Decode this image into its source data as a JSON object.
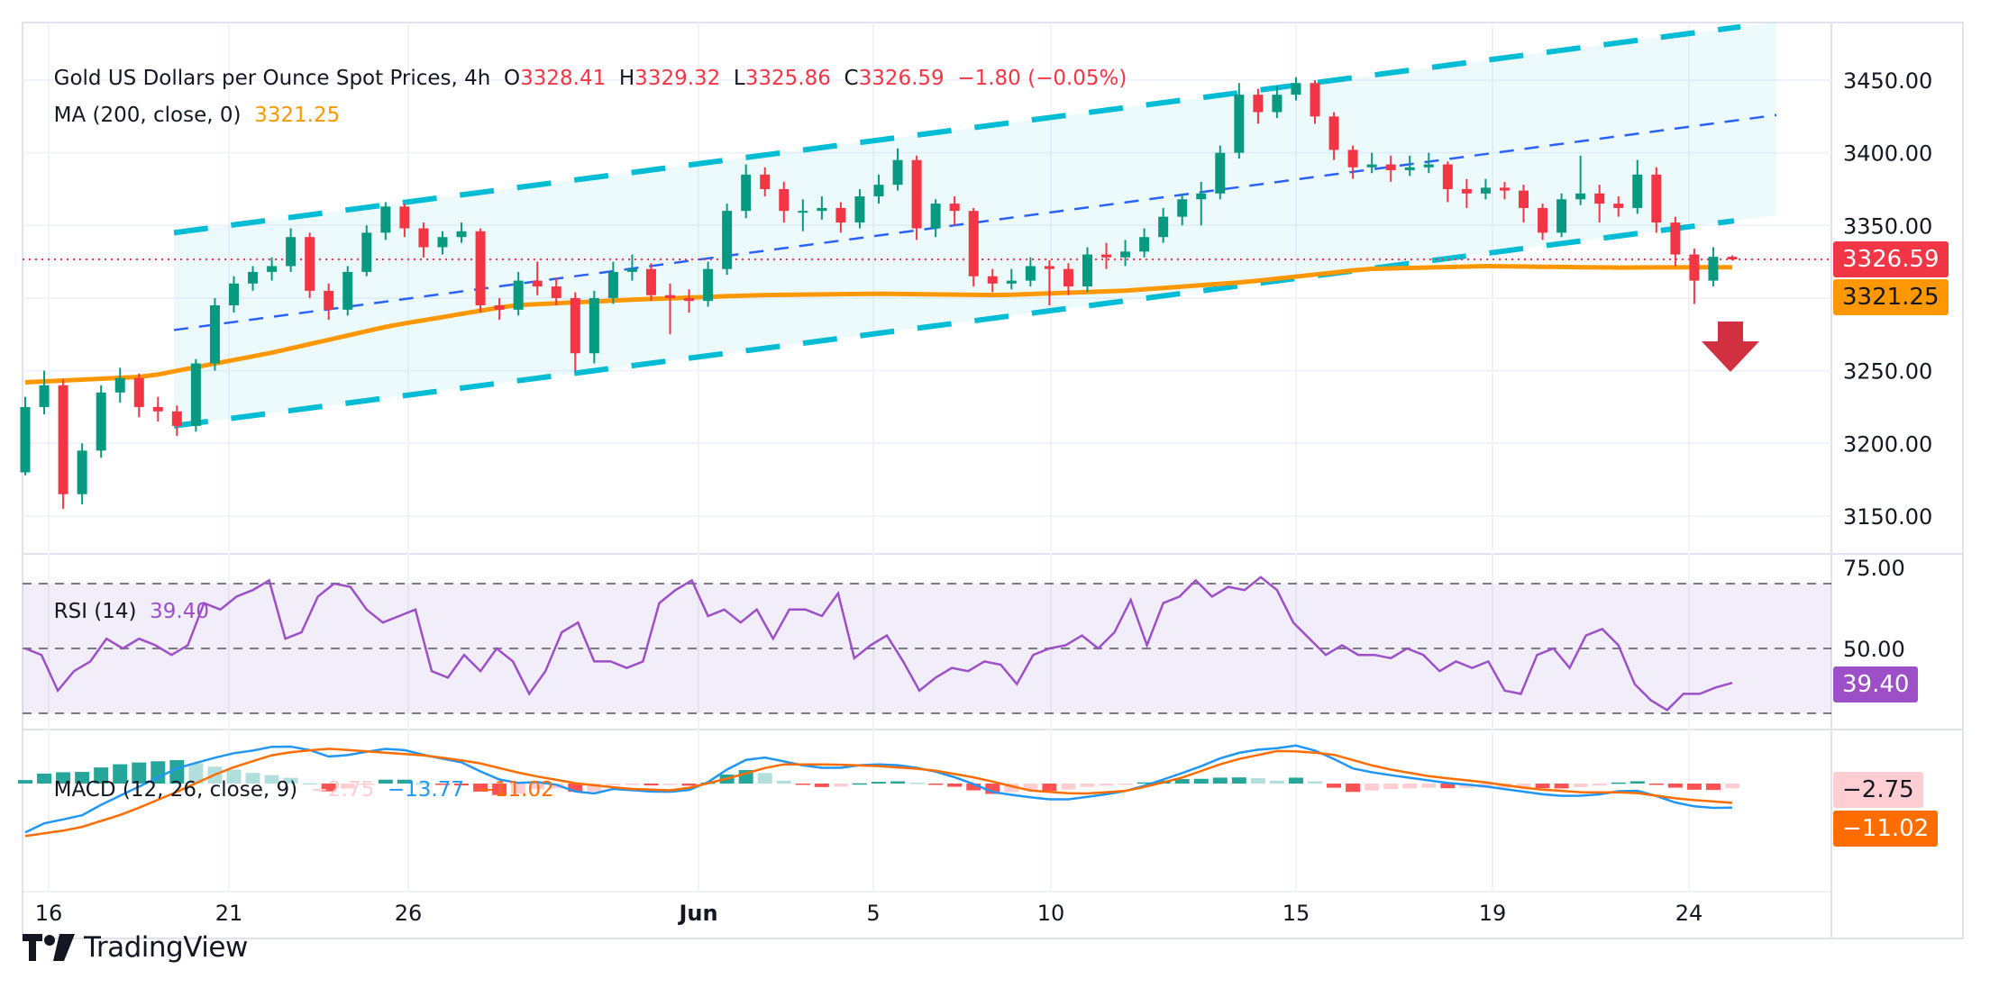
{
  "header": {
    "title": "Gold US Dollars per Ounce Spot Prices, 4h",
    "open_label": "O",
    "open": "3328.41",
    "high_label": "H",
    "high": "3329.32",
    "low_label": "L",
    "low": "3325.86",
    "close_label": "C",
    "close": "3326.59",
    "change": "−1.80 (−0.05%)",
    "ma_label": "MA (200, close, 0)",
    "ma_value": "3321.25"
  },
  "price_axis": {
    "ticks": [
      "3450.00",
      "3400.00",
      "3350.00",
      "3250.00",
      "3200.00",
      "3150.00"
    ],
    "last_price_tag": "3326.59",
    "ma_tag": "3321.25"
  },
  "rsi": {
    "label": "RSI (14)",
    "value": "39.40",
    "ticks": [
      "75.00",
      "50.00"
    ],
    "tag": "39.40"
  },
  "macd": {
    "label": "MACD (12, 26, close, 9)",
    "hist_value": "−2.75",
    "macd_value": "−13.77",
    "signal_value": "−11.02",
    "hist_tag": "−2.75",
    "signal_tag": "−11.02"
  },
  "time_axis": {
    "ticks": [
      "16",
      "21",
      "26",
      "Jun",
      "5",
      "10",
      "15",
      "19",
      "24"
    ]
  },
  "brand": {
    "name": "TradingView"
  },
  "colors": {
    "up": "#089981",
    "down": "#f23645",
    "ma": "#ff9800",
    "channel_outer": "#00bcd4",
    "channel_mid": "#2962ff",
    "rsi": "#9c4fc6",
    "macd": "#2196f3",
    "signal": "#ff6d00",
    "arrow": "#d0303f"
  },
  "chart_data": {
    "type": "candlestick",
    "title": "Gold US Dollars per Ounce Spot Prices, 4h",
    "ylim": [
      3120,
      3490
    ],
    "ohlc": [
      [
        3180,
        3232,
        3178,
        3225
      ],
      [
        3225,
        3250,
        3220,
        3240
      ],
      [
        3240,
        3244,
        3155,
        3165
      ],
      [
        3165,
        3200,
        3158,
        3195
      ],
      [
        3195,
        3240,
        3190,
        3235
      ],
      [
        3235,
        3252,
        3228,
        3245
      ],
      [
        3245,
        3248,
        3218,
        3225
      ],
      [
        3225,
        3232,
        3215,
        3222
      ],
      [
        3222,
        3226,
        3205,
        3212
      ],
      [
        3212,
        3258,
        3208,
        3255
      ],
      [
        3255,
        3300,
        3250,
        3295
      ],
      [
        3295,
        3315,
        3290,
        3310
      ],
      [
        3310,
        3322,
        3305,
        3318
      ],
      [
        3318,
        3328,
        3312,
        3322
      ],
      [
        3322,
        3348,
        3318,
        3342
      ],
      [
        3342,
        3345,
        3300,
        3305
      ],
      [
        3305,
        3310,
        3285,
        3292
      ],
      [
        3292,
        3322,
        3288,
        3318
      ],
      [
        3318,
        3350,
        3315,
        3345
      ],
      [
        3345,
        3366,
        3340,
        3363
      ],
      [
        3363,
        3365,
        3342,
        3348
      ],
      [
        3348,
        3352,
        3328,
        3335
      ],
      [
        3335,
        3346,
        3330,
        3342
      ],
      [
        3342,
        3352,
        3338,
        3346
      ],
      [
        3346,
        3348,
        3290,
        3295
      ],
      [
        3295,
        3300,
        3285,
        3292
      ],
      [
        3292,
        3318,
        3288,
        3312
      ],
      [
        3312,
        3325,
        3302,
        3308
      ],
      [
        3308,
        3314,
        3295,
        3300
      ],
      [
        3300,
        3304,
        3250,
        3262
      ],
      [
        3262,
        3305,
        3255,
        3300
      ],
      [
        3300,
        3325,
        3296,
        3318
      ],
      [
        3318,
        3330,
        3312,
        3320
      ],
      [
        3320,
        3324,
        3298,
        3302
      ],
      [
        3302,
        3310,
        3275,
        3300
      ],
      [
        3300,
        3306,
        3290,
        3298
      ],
      [
        3298,
        3325,
        3294,
        3320
      ],
      [
        3320,
        3365,
        3316,
        3360
      ],
      [
        3360,
        3392,
        3355,
        3385
      ],
      [
        3385,
        3390,
        3370,
        3375
      ],
      [
        3375,
        3380,
        3352,
        3360
      ],
      [
        3360,
        3368,
        3346,
        3360
      ],
      [
        3360,
        3370,
        3354,
        3362
      ],
      [
        3362,
        3366,
        3345,
        3352
      ],
      [
        3352,
        3375,
        3348,
        3370
      ],
      [
        3370,
        3385,
        3365,
        3378
      ],
      [
        3378,
        3403,
        3374,
        3395
      ],
      [
        3395,
        3398,
        3340,
        3348
      ],
      [
        3348,
        3368,
        3342,
        3365
      ],
      [
        3365,
        3370,
        3350,
        3360
      ],
      [
        3360,
        3362,
        3308,
        3315
      ],
      [
        3315,
        3320,
        3304,
        3310
      ],
      [
        3310,
        3320,
        3306,
        3312
      ],
      [
        3312,
        3328,
        3308,
        3322
      ],
      [
        3322,
        3326,
        3295,
        3320
      ],
      [
        3320,
        3324,
        3302,
        3308
      ],
      [
        3308,
        3335,
        3304,
        3330
      ],
      [
        3330,
        3338,
        3320,
        3328
      ],
      [
        3328,
        3340,
        3322,
        3332
      ],
      [
        3332,
        3348,
        3328,
        3342
      ],
      [
        3342,
        3362,
        3338,
        3356
      ],
      [
        3356,
        3372,
        3350,
        3368
      ],
      [
        3368,
        3380,
        3350,
        3372
      ],
      [
        3372,
        3405,
        3368,
        3400
      ],
      [
        3400,
        3448,
        3396,
        3440
      ],
      [
        3440,
        3444,
        3420,
        3428
      ],
      [
        3428,
        3446,
        3424,
        3440
      ],
      [
        3440,
        3452,
        3436,
        3448
      ],
      [
        3448,
        3450,
        3420,
        3425
      ],
      [
        3425,
        3428,
        3395,
        3402
      ],
      [
        3402,
        3405,
        3382,
        3390
      ],
      [
        3390,
        3400,
        3386,
        3392
      ],
      [
        3392,
        3398,
        3380,
        3388
      ],
      [
        3388,
        3398,
        3384,
        3390
      ],
      [
        3390,
        3400,
        3386,
        3392
      ],
      [
        3392,
        3394,
        3366,
        3375
      ],
      [
        3375,
        3382,
        3362,
        3372
      ],
      [
        3372,
        3382,
        3368,
        3376
      ],
      [
        3376,
        3380,
        3368,
        3374
      ],
      [
        3374,
        3378,
        3352,
        3362
      ],
      [
        3362,
        3365,
        3340,
        3345
      ],
      [
        3345,
        3372,
        3342,
        3368
      ],
      [
        3368,
        3398,
        3364,
        3372
      ],
      [
        3372,
        3378,
        3352,
        3365
      ],
      [
        3365,
        3370,
        3356,
        3362
      ],
      [
        3362,
        3395,
        3358,
        3385
      ],
      [
        3385,
        3390,
        3345,
        3352
      ],
      [
        3352,
        3356,
        3322,
        3330
      ],
      [
        3330,
        3334,
        3296,
        3312
      ],
      [
        3312,
        3335,
        3308,
        3328.41
      ],
      [
        3328.41,
        3329.32,
        3325.86,
        3326.59
      ]
    ],
    "ma200": [
      3242,
      3246,
      3262,
      3281,
      3295,
      3299,
      3302,
      3303,
      3302,
      3305,
      3311,
      3320,
      3322,
      3321,
      3321.25
    ],
    "channel": {
      "upper": [
        3345,
        3490
      ],
      "middle": [
        3278,
        3426
      ],
      "lower": [
        3212,
        3357
      ]
    },
    "last_price": 3326.59,
    "rsi_levels": [
      70,
      50,
      30
    ],
    "rsi_range": [
      20,
      80
    ],
    "rsi": [
      50,
      48,
      37,
      43,
      46,
      53,
      50,
      53,
      51,
      48,
      51,
      64,
      62,
      66,
      68,
      71,
      53,
      55,
      66,
      70,
      69,
      62,
      58,
      60,
      62,
      43,
      41,
      48,
      43,
      50,
      46,
      36,
      43,
      55,
      58,
      46,
      46,
      44,
      46,
      64,
      68,
      71,
      60,
      62,
      58,
      62,
      53,
      62,
      62,
      60,
      67,
      47,
      51,
      54,
      46,
      37,
      41,
      44,
      43,
      46,
      45,
      39,
      48,
      50,
      51,
      54,
      50,
      55,
      65,
      51,
      64,
      66,
      71,
      66,
      69,
      68,
      72,
      68,
      58,
      53,
      48,
      51,
      48,
      48,
      47,
      50,
      48,
      43,
      46,
      44,
      46,
      37,
      36,
      48,
      50,
      44,
      54,
      56,
      51,
      39,
      34,
      31,
      36,
      36,
      38,
      39.4
    ],
    "macd_line": [
      -28,
      -21,
      -20,
      -12,
      -5,
      2,
      9,
      13,
      17,
      19,
      22,
      20,
      15,
      17,
      20,
      19,
      15,
      13,
      6,
      0,
      1,
      -1,
      -7,
      -3,
      -4,
      -5,
      -4,
      2,
      13,
      15,
      12,
      9,
      9,
      11,
      11,
      9,
      6,
      1,
      -5,
      -7,
      -9,
      -9,
      -7,
      -5,
      -1,
      4,
      9,
      15,
      19,
      20,
      22,
      17,
      9,
      6,
      4,
      2,
      0,
      -1,
      -3,
      -5,
      -7,
      -7,
      -6,
      -3,
      -7,
      -12,
      -14,
      -13.77
    ],
    "signal_line": [
      -30,
      -26,
      -17,
      -5,
      8,
      17,
      20,
      18,
      16,
      12,
      5,
      0,
      -3,
      -4,
      3,
      11,
      11,
      10,
      8,
      3,
      -4,
      -6,
      -4,
      3,
      13,
      19,
      17,
      9,
      4,
      1,
      -3,
      -5,
      -5,
      -9,
      -11.02
    ]
  }
}
